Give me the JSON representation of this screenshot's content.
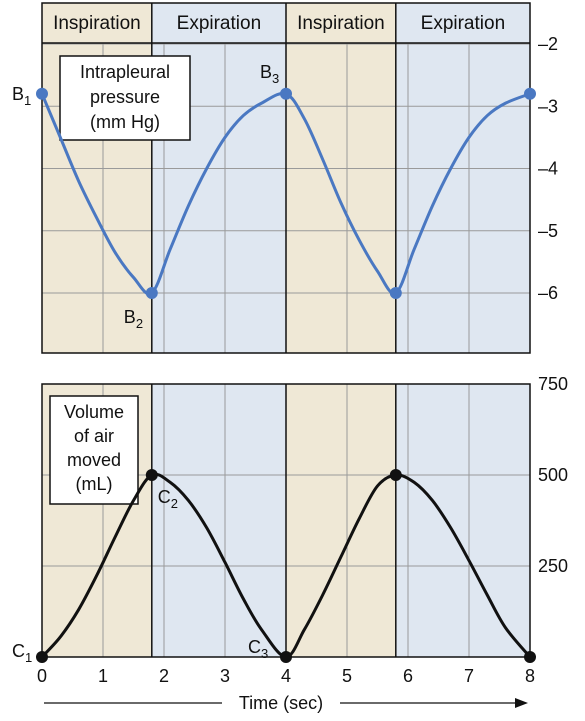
{
  "chart_data": [
    {
      "type": "line",
      "title": "",
      "legend_box": [
        "Intrapleural",
        "pressure",
        "(mm Hg)"
      ],
      "phases": [
        "Inspiration",
        "Expiration",
        "Inspiration",
        "Expiration"
      ],
      "phase_bounds": [
        [
          0,
          1.8
        ],
        [
          1.8,
          4
        ],
        [
          4,
          5.8
        ],
        [
          5.8,
          8
        ]
      ],
      "phase_colors": {
        "Inspiration": "#efe8d6",
        "Expiration": "#dfe7f1"
      },
      "xlim": [
        0,
        8
      ],
      "ylim": [
        -7,
        -2
      ],
      "yticks": [
        -2,
        -3,
        -4,
        -5,
        -6
      ],
      "ytick_labels": [
        "–2",
        "–3",
        "–4",
        "–5",
        "–6"
      ],
      "axis_side": "right",
      "grid": true,
      "series": [
        {
          "color": "#4a78c2",
          "x": [
            0,
            0.3,
            0.6,
            0.9,
            1.2,
            1.5,
            1.8,
            2.1,
            2.4,
            2.7,
            3.0,
            3.3,
            3.6,
            4.0,
            4.3,
            4.6,
            4.9,
            5.2,
            5.5,
            5.8,
            6.1,
            6.4,
            6.7,
            7.0,
            7.3,
            7.6,
            8.0
          ],
          "values": [
            -2.8,
            -3.5,
            -4.2,
            -4.8,
            -5.35,
            -5.75,
            -6.0,
            -5.3,
            -4.6,
            -4.0,
            -3.5,
            -3.15,
            -2.95,
            -2.8,
            -3.2,
            -3.85,
            -4.55,
            -5.15,
            -5.65,
            -6.0,
            -5.3,
            -4.6,
            -4.0,
            -3.5,
            -3.15,
            -2.95,
            -2.8
          ]
        }
      ],
      "points": [
        {
          "label": "B",
          "sub": "1",
          "x": 0,
          "y": -2.8
        },
        {
          "label": "B",
          "sub": "2",
          "x": 1.8,
          "y": -6.0
        },
        {
          "label": "B",
          "sub": "3",
          "x": 4,
          "y": -2.8
        },
        {
          "label": "",
          "sub": "",
          "x": 5.8,
          "y": -6.0
        },
        {
          "label": "",
          "sub": "",
          "x": 8,
          "y": -2.8
        }
      ]
    },
    {
      "type": "line",
      "title": "",
      "legend_box": [
        "Volume",
        "of air",
        "moved",
        "(mL)"
      ],
      "xlabel": "Time (sec)",
      "xticks": [
        0,
        1,
        2,
        3,
        4,
        5,
        6,
        7,
        8
      ],
      "xlim": [
        0,
        8
      ],
      "ylim": [
        0,
        750
      ],
      "yticks": [
        250,
        500,
        750
      ],
      "ytick_labels": [
        "250",
        "500",
        "750"
      ],
      "axis_side": "right",
      "grid": true,
      "series": [
        {
          "color": "#111111",
          "x": [
            0,
            0.3,
            0.6,
            0.9,
            1.2,
            1.5,
            1.8,
            2.1,
            2.4,
            2.7,
            3.0,
            3.3,
            3.6,
            4.0,
            4.3,
            4.6,
            4.9,
            5.2,
            5.5,
            5.8,
            6.1,
            6.4,
            6.7,
            7.0,
            7.3,
            7.6,
            8.0
          ],
          "values": [
            0,
            55,
            130,
            225,
            330,
            430,
            500,
            480,
            430,
            355,
            260,
            160,
            75,
            0,
            75,
            170,
            275,
            380,
            470,
            500,
            480,
            430,
            355,
            265,
            170,
            80,
            0
          ]
        }
      ],
      "points": [
        {
          "label": "C",
          "sub": "1",
          "x": 0,
          "y": 0
        },
        {
          "label": "C",
          "sub": "2",
          "x": 1.8,
          "y": 500
        },
        {
          "label": "C",
          "sub": "3",
          "x": 4,
          "y": 0
        },
        {
          "label": "",
          "sub": "",
          "x": 5.8,
          "y": 500
        },
        {
          "label": "",
          "sub": "",
          "x": 8,
          "y": 0
        }
      ]
    }
  ],
  "colors": {
    "inspiration_bg": "#efe8d6",
    "expiration_bg": "#dfe7f1",
    "pressure_line": "#4a78c2",
    "volume_line": "#111111",
    "grid": "#9a9a9a",
    "frame": "#111111"
  }
}
